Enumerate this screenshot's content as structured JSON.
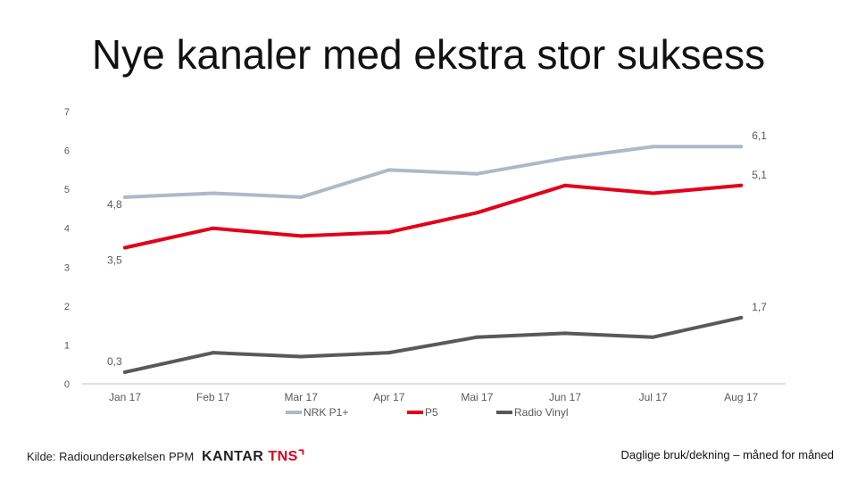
{
  "title": "Nye kanaler med ekstra stor suksess",
  "source": "Kilde: Radioundersøkelsen PPM",
  "logo": {
    "part1": "KANTAR ",
    "part2": "TNS",
    "mark": "⌝"
  },
  "note": "Daglige bruk/dekning – måned for måned",
  "colors": {
    "nrk": "#aeb9c8",
    "p5": "#e2001a",
    "vinyl": "#595959",
    "axis": "#bfbfbf",
    "text": "#595959"
  },
  "chart_data": {
    "type": "line",
    "categories": [
      "Jan 17",
      "Feb 17",
      "Mar 17",
      "Apr 17",
      "Mai 17",
      "Jun 17",
      "Jul 17",
      "Aug 17"
    ],
    "ylim": [
      0,
      7
    ],
    "yticks": [
      "0",
      "1",
      "2",
      "3",
      "4",
      "5",
      "6",
      "7"
    ],
    "grid": false,
    "legend_position": "bottom",
    "series": [
      {
        "name": "NRK P1+",
        "color": "#aeb9c8",
        "values": [
          4.8,
          4.9,
          4.8,
          5.5,
          5.4,
          5.8,
          6.1,
          6.1
        ],
        "labels": [
          {
            "index": 0,
            "text": "4,8"
          },
          {
            "index": 7,
            "text": "6,1"
          }
        ]
      },
      {
        "name": "P5",
        "color": "#e2001a",
        "values": [
          3.5,
          4.0,
          3.8,
          3.9,
          4.4,
          5.1,
          4.9,
          5.1
        ],
        "labels": [
          {
            "index": 0,
            "text": "3,5"
          },
          {
            "index": 7,
            "text": "5,1"
          }
        ]
      },
      {
        "name": "Radio Vinyl",
        "color": "#595959",
        "values": [
          0.3,
          0.8,
          0.7,
          0.8,
          1.2,
          1.3,
          1.2,
          1.7
        ],
        "labels": [
          {
            "index": 0,
            "text": "0,3"
          },
          {
            "index": 7,
            "text": "1,7"
          }
        ]
      }
    ]
  }
}
